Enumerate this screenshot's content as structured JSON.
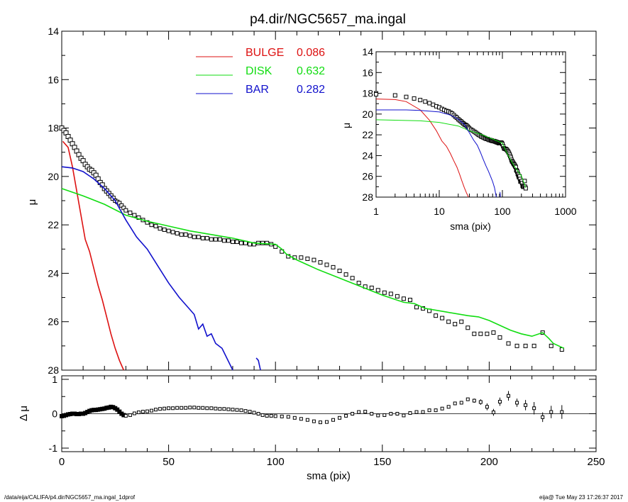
{
  "title": "p4.dir/NGC5657_ma.ingal",
  "footer_left": "/data/eija/CALIFA/p4.dir/NGC5657_ma.ingal_1dprof",
  "footer_right": "eija@  Tue May 23 17:26:37 2017",
  "colors": {
    "bulge": "#dd1111",
    "disk": "#11dd11",
    "bar": "#1111cc",
    "obs": "#000000"
  },
  "chart_data": [
    {
      "id": "main",
      "type": "line",
      "title": "p4.dir/NGC5657_ma.ingal",
      "xlabel": "",
      "ylabel": "μ",
      "xlim": [
        0,
        250
      ],
      "ylim": [
        28,
        14
      ],
      "y_ticks": [
        14,
        16,
        18,
        20,
        22,
        24,
        26,
        28
      ],
      "legend": [
        {
          "label": "BULGE",
          "value": "0.086",
          "color": "#dd1111"
        },
        {
          "label": "DISK",
          "value": "0.632",
          "color": "#11dd11"
        },
        {
          "label": "BAR",
          "value": "0.282",
          "color": "#1111cc"
        }
      ],
      "series": [
        {
          "name": "BULGE",
          "color": "#dd1111",
          "x": [
            0.5,
            3,
            5,
            7,
            9,
            11,
            13,
            15,
            17,
            19,
            21,
            23,
            25,
            27,
            29
          ],
          "y": [
            18.55,
            18.8,
            19.6,
            20.6,
            21.6,
            22.6,
            23.1,
            23.8,
            24.5,
            25.1,
            25.8,
            26.5,
            27.1,
            27.6,
            28
          ]
        },
        {
          "name": "DISK",
          "color": "#11dd11",
          "x": [
            0,
            10,
            20,
            30,
            40,
            50,
            60,
            70,
            80,
            90,
            100,
            103,
            105,
            110,
            115,
            120,
            130,
            140,
            150,
            160,
            165,
            170,
            180,
            190,
            195,
            200,
            210,
            215,
            220,
            225,
            228,
            230,
            235
          ],
          "y": [
            20.5,
            20.8,
            21.15,
            21.6,
            21.85,
            22.05,
            22.25,
            22.4,
            22.55,
            22.75,
            22.8,
            23.0,
            23.2,
            23.45,
            23.65,
            23.85,
            24.2,
            24.55,
            24.9,
            25.2,
            25.25,
            25.45,
            25.6,
            25.75,
            25.8,
            25.95,
            26.35,
            26.5,
            26.6,
            26.45,
            26.7,
            26.9,
            27.1
          ]
        },
        {
          "name": "BAR",
          "color": "#1111cc",
          "x": [
            0,
            5,
            10,
            15,
            20,
            25,
            30,
            35,
            40,
            45,
            50,
            55,
            60,
            62,
            64,
            66,
            68,
            70,
            72,
            75,
            80
          ],
          "y": [
            19.6,
            19.65,
            19.8,
            20.1,
            20.5,
            21.0,
            21.8,
            22.5,
            23.0,
            23.7,
            24.4,
            25.0,
            25.5,
            25.7,
            26.3,
            26.1,
            26.6,
            26.5,
            26.9,
            27.1,
            28
          ]
        },
        {
          "name": "",
          "color": "#1111cc",
          "x": [
            91,
            92,
            93
          ],
          "y": [
            27.5,
            27.6,
            28
          ]
        }
      ],
      "points": {
        "x": [
          0,
          1,
          2,
          3,
          4,
          5,
          6,
          7,
          8,
          9,
          10,
          11,
          12,
          13,
          14,
          15,
          16,
          17,
          18,
          19,
          20,
          21,
          22,
          23,
          24,
          25,
          26,
          27,
          28,
          29,
          30,
          32,
          34,
          36,
          38,
          40,
          42,
          44,
          46,
          48,
          50,
          52,
          54,
          56,
          58,
          60,
          62,
          64,
          66,
          68,
          70,
          72,
          74,
          76,
          78,
          80,
          82,
          84,
          86,
          88,
          90,
          92,
          94,
          96,
          98,
          100,
          103,
          106,
          109,
          112,
          115,
          118,
          121,
          124,
          127,
          130,
          133,
          136,
          139,
          142,
          145,
          148,
          151,
          154,
          157,
          160,
          163,
          166,
          169,
          172,
          175,
          178,
          181,
          184,
          187,
          190,
          193,
          196,
          199,
          202,
          205,
          209,
          213,
          217,
          221,
          225,
          229,
          234
        ],
        "y": [
          18.0,
          18.1,
          18.2,
          18.35,
          18.5,
          18.65,
          18.8,
          18.95,
          19.1,
          19.25,
          19.35,
          19.5,
          19.6,
          19.7,
          19.75,
          19.85,
          19.95,
          20.1,
          20.25,
          20.35,
          20.5,
          20.6,
          20.7,
          20.8,
          20.9,
          21.0,
          21.05,
          21.1,
          21.2,
          21.3,
          21.4,
          21.5,
          21.6,
          21.7,
          21.8,
          21.9,
          22.0,
          22.05,
          22.15,
          22.2,
          22.25,
          22.3,
          22.35,
          22.4,
          22.4,
          22.45,
          22.5,
          22.5,
          22.55,
          22.55,
          22.6,
          22.6,
          22.6,
          22.65,
          22.65,
          22.7,
          22.7,
          22.75,
          22.75,
          22.8,
          22.8,
          22.75,
          22.75,
          22.75,
          22.8,
          22.9,
          23.1,
          23.3,
          23.35,
          23.35,
          23.4,
          23.45,
          23.55,
          23.65,
          23.75,
          23.9,
          24.05,
          24.2,
          24.4,
          24.55,
          24.6,
          24.7,
          24.8,
          24.85,
          24.95,
          25.05,
          25.1,
          25.4,
          25.45,
          25.55,
          25.75,
          25.85,
          26.0,
          26.1,
          26.0,
          26.25,
          26.5,
          26.5,
          26.5,
          26.45,
          26.65,
          26.9,
          27.0,
          27.0,
          27.0,
          26.45,
          27.0,
          27.15
        ]
      }
    },
    {
      "id": "inset",
      "type": "line",
      "xlabel": "sma (pix)",
      "ylabel": "μ",
      "x_scale": "log",
      "xlim": [
        1,
        1000
      ],
      "ylim": [
        28,
        14
      ],
      "x_ticks": [
        1,
        10,
        100,
        1000
      ],
      "x_tick_labels": [
        "1",
        "10",
        "100",
        "1000"
      ],
      "y_ticks": [
        14,
        16,
        18,
        20,
        22,
        24,
        26,
        28
      ],
      "series": [
        {
          "name": "BULGE",
          "color": "#dd1111",
          "x": [
            1,
            2,
            3,
            5,
            7,
            9,
            11,
            13,
            15,
            17,
            19,
            21,
            23,
            25,
            27,
            29
          ],
          "y": [
            18.55,
            18.6,
            18.8,
            19.6,
            20.6,
            21.6,
            22.6,
            23.1,
            23.8,
            24.5,
            25.1,
            25.8,
            26.5,
            27.1,
            27.6,
            28
          ]
        },
        {
          "name": "DISK",
          "color": "#11dd11",
          "x": [
            1,
            5,
            10,
            20,
            30,
            40,
            50,
            60,
            70,
            80,
            100,
            120,
            150,
            180,
            200,
            234
          ],
          "y": [
            20.55,
            20.65,
            20.8,
            21.15,
            21.6,
            21.85,
            22.05,
            22.25,
            22.4,
            22.55,
            22.8,
            23.85,
            24.9,
            25.6,
            25.95,
            27.1
          ]
        },
        {
          "name": "BAR",
          "color": "#1111cc",
          "x": [
            1,
            3,
            5,
            10,
            15,
            20,
            25,
            30,
            35,
            40,
            45,
            50,
            55,
            60,
            66,
            70,
            75,
            80
          ],
          "y": [
            19.6,
            19.6,
            19.65,
            19.8,
            20.1,
            20.5,
            21.0,
            21.8,
            22.5,
            23.0,
            23.7,
            24.4,
            25.0,
            25.5,
            26.1,
            26.5,
            27.1,
            28
          ]
        },
        {
          "name": "",
          "color": "#1111cc",
          "x": [
            91,
            92,
            93
          ],
          "y": [
            27.5,
            27.6,
            28
          ]
        }
      ]
    },
    {
      "id": "residual",
      "type": "scatter",
      "xlabel": "sma (pix)",
      "ylabel": "Δ μ",
      "xlim": [
        0,
        250
      ],
      "ylim": [
        -1.1,
        1.1
      ],
      "x_ticks": [
        0,
        50,
        100,
        150,
        200,
        250
      ],
      "y_ticks": [
        -1,
        0,
        1
      ],
      "points": {
        "x": [
          0,
          1,
          2,
          3,
          4,
          5,
          6,
          7,
          8,
          9,
          10,
          11,
          12,
          13,
          14,
          15,
          16,
          17,
          18,
          19,
          20,
          21,
          22,
          23,
          24,
          25,
          26,
          27,
          28,
          29,
          30,
          32,
          34,
          36,
          38,
          40,
          42,
          44,
          46,
          48,
          50,
          52,
          54,
          56,
          58,
          60,
          62,
          64,
          66,
          68,
          70,
          72,
          74,
          76,
          78,
          80,
          82,
          84,
          86,
          88,
          90,
          92,
          94,
          96,
          98,
          100,
          103,
          106,
          109,
          112,
          115,
          118,
          121,
          124,
          127,
          130,
          133,
          136,
          139,
          142,
          145,
          148,
          151,
          154,
          157,
          160,
          163,
          166,
          169,
          172,
          175,
          178,
          181,
          184,
          187,
          190,
          193,
          196,
          199,
          202,
          205,
          209,
          213,
          217,
          221,
          225,
          229,
          234
        ],
        "y": [
          -0.07,
          -0.06,
          -0.04,
          -0.02,
          -0.01,
          0.0,
          0.0,
          -0.01,
          -0.01,
          0.0,
          0.0,
          0.02,
          0.05,
          0.08,
          0.1,
          0.11,
          0.11,
          0.12,
          0.13,
          0.14,
          0.15,
          0.17,
          0.18,
          0.2,
          0.19,
          0.16,
          0.12,
          0.06,
          0.0,
          -0.04,
          -0.06,
          -0.04,
          0.01,
          0.04,
          0.06,
          0.07,
          0.09,
          0.12,
          0.14,
          0.15,
          0.16,
          0.16,
          0.17,
          0.17,
          0.17,
          0.18,
          0.18,
          0.17,
          0.17,
          0.16,
          0.16,
          0.15,
          0.14,
          0.14,
          0.13,
          0.12,
          0.11,
          0.1,
          0.08,
          0.06,
          0.03,
          0.0,
          -0.04,
          -0.06,
          -0.06,
          -0.07,
          -0.08,
          -0.09,
          -0.12,
          -0.15,
          -0.18,
          -0.22,
          -0.25,
          -0.24,
          -0.18,
          -0.12,
          -0.06,
          0.0,
          0.05,
          0.06,
          0.0,
          -0.05,
          -0.04,
          0.0,
          0.0,
          -0.05,
          0.02,
          0.05,
          0.05,
          0.1,
          0.1,
          0.15,
          0.2,
          0.3,
          0.32,
          0.42,
          0.38,
          0.34,
          0.2,
          0.04,
          0.35,
          0.52,
          0.32,
          0.25,
          0.16,
          -0.1,
          0.05,
          0.05
        ],
        "err": [
          0,
          0,
          0,
          0,
          0,
          0,
          0,
          0,
          0,
          0,
          0,
          0,
          0,
          0,
          0,
          0,
          0,
          0,
          0,
          0,
          0,
          0,
          0,
          0,
          0,
          0,
          0,
          0,
          0,
          0,
          0,
          0,
          0,
          0,
          0,
          0,
          0,
          0,
          0,
          0,
          0,
          0,
          0,
          0,
          0,
          0,
          0,
          0,
          0,
          0,
          0,
          0,
          0,
          0,
          0,
          0,
          0,
          0,
          0,
          0,
          0,
          0,
          0,
          0,
          0,
          0,
          0,
          0,
          0,
          0,
          0,
          0,
          0,
          0,
          0,
          0,
          0,
          0,
          0,
          0,
          0,
          0,
          0,
          0,
          0,
          0,
          0,
          0,
          0,
          0,
          0,
          0,
          0,
          0,
          0,
          0.04,
          0.06,
          0.08,
          0.1,
          0.1,
          0.12,
          0.14,
          0.12,
          0.15,
          0.18,
          0.14,
          0.18,
          0.2
        ]
      }
    }
  ]
}
